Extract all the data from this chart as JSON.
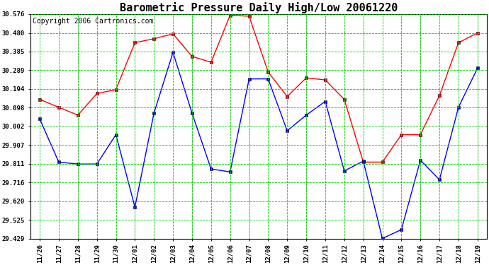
{
  "title": "Barometric Pressure Daily High/Low 20061220",
  "copyright": "Copyright 2006 Cartronics.com",
  "dates": [
    "11/26",
    "11/27",
    "11/28",
    "11/29",
    "11/30",
    "12/01",
    "12/02",
    "12/03",
    "12/04",
    "12/05",
    "12/06",
    "12/07",
    "12/08",
    "12/09",
    "12/10",
    "12/11",
    "12/12",
    "12/13",
    "12/14",
    "12/15",
    "12/16",
    "12/17",
    "12/18",
    "12/19"
  ],
  "high": [
    30.14,
    30.1,
    30.06,
    30.17,
    30.19,
    30.43,
    30.45,
    30.475,
    30.36,
    30.33,
    30.57,
    30.565,
    30.28,
    30.155,
    30.25,
    30.24,
    30.14,
    29.82,
    29.82,
    29.96,
    29.96,
    30.16,
    30.43,
    30.48
  ],
  "low": [
    30.04,
    29.82,
    29.81,
    29.81,
    29.96,
    29.59,
    30.07,
    30.38,
    30.07,
    29.785,
    29.77,
    30.245,
    30.245,
    29.98,
    30.06,
    30.13,
    29.775,
    29.825,
    29.43,
    29.475,
    29.83,
    29.73,
    30.1,
    30.3
  ],
  "ylim_min": 29.429,
  "ylim_max": 30.576,
  "yticks": [
    29.429,
    29.525,
    29.62,
    29.716,
    29.811,
    29.907,
    30.002,
    30.098,
    30.194,
    30.289,
    30.385,
    30.48,
    30.576
  ],
  "high_color": "#FF0000",
  "low_color": "#0000FF",
  "grid_color": "#00CC00",
  "bg_color": "#FFFFFF",
  "title_fontsize": 11,
  "copyright_fontsize": 7,
  "figwidth": 6.9,
  "figheight": 3.75,
  "dpi": 100
}
